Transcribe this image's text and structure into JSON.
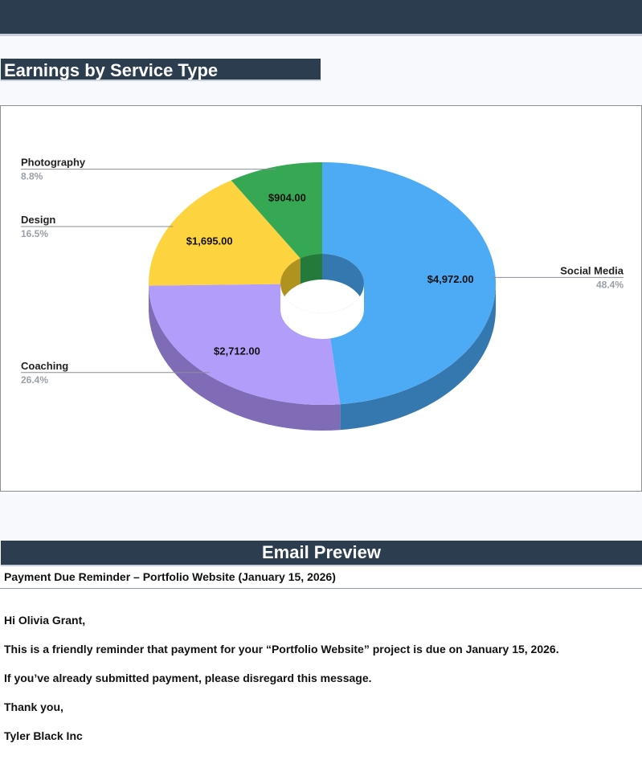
{
  "page": {
    "section_title": "Earnings by Service Type"
  },
  "chart_data": {
    "type": "pie",
    "style": "3d-donut",
    "title": "",
    "categories": [
      "Social Media",
      "Coaching",
      "Design",
      "Photography"
    ],
    "values": [
      4972.0,
      2712.0,
      1695.0,
      904.0
    ],
    "value_labels": [
      "$4,972.00",
      "$2,712.00",
      "$1,695.00",
      "$904.00"
    ],
    "percent_labels": [
      "48.4%",
      "26.4%",
      "16.5%",
      "8.8%"
    ],
    "colors": [
      "#4dabf5",
      "#b39dfb",
      "#fdd33f",
      "#36a853"
    ],
    "side_colors": [
      "#3578b0",
      "#7f6bb6",
      "#b0931f",
      "#237a3a"
    ]
  },
  "email": {
    "header": "Email Preview",
    "subject": "Payment Due Reminder – Portfolio Website (January 15, 2026)",
    "greeting": "Hi Olivia Grant,",
    "body_line_1": "This is a friendly reminder that payment for your “Portfolio Website” project is due on January 15, 2026.",
    "body_line_2": "If you’ve already submitted payment, please disregard this message.",
    "closing": "Thank you,",
    "signature": "Tyler Black Inc"
  }
}
